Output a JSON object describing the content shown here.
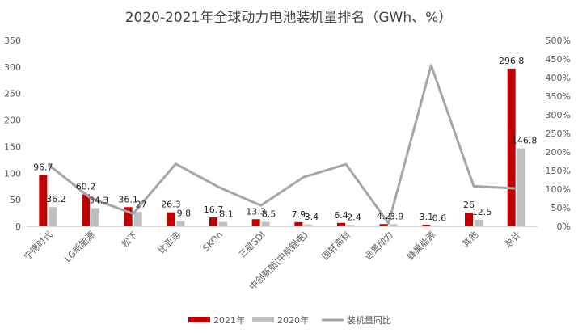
{
  "chart_data": {
    "type": "bar",
    "title": "2020-2021年全球动力电池装机量排名（GWh、%）",
    "categories": [
      "宁德时代",
      "LG新能源",
      "松下",
      "比亚迪",
      "SKOn",
      "三星SDI",
      "中创新航(中航锂电)",
      "国轩高科",
      "远景动力",
      "蜂巢能源",
      "其他",
      "总计"
    ],
    "series": [
      {
        "name": "2021年",
        "type": "bar",
        "axis": "left",
        "color": "#C00000",
        "values": [
          96.7,
          60.2,
          36.1,
          26.3,
          16.7,
          13.3,
          7.9,
          6.4,
          4.2,
          3.1,
          26,
          296.8
        ],
        "labels": [
          "96.7",
          "60.2",
          "36.1",
          "26.3",
          "16.7",
          "13.3",
          "7.9",
          "6.4",
          "4.2",
          "3.1",
          "26",
          "296.8"
        ]
      },
      {
        "name": "2020年",
        "type": "bar",
        "axis": "left",
        "color": "#BFBFBF",
        "values": [
          36.2,
          34.3,
          27,
          9.8,
          8.1,
          8.5,
          3.4,
          2.4,
          3.9,
          0.6,
          12.5,
          146.8
        ],
        "labels": [
          "36.2",
          "34.3",
          "27",
          "9.8",
          "8.1",
          "8.5",
          "3.4",
          "2.4",
          "3.9",
          "0.6",
          "12.5",
          "146.8"
        ]
      },
      {
        "name": "装机量同比",
        "type": "line",
        "axis": "right",
        "color": "#A6A6A6",
        "values": [
          167,
          76,
          34,
          168,
          106,
          56,
          132,
          167,
          8,
          433,
          108,
          102
        ]
      }
    ],
    "y_left": {
      "min": 0,
      "max": 350,
      "step": 50,
      "ticks": [
        "0",
        "50",
        "100",
        "150",
        "200",
        "250",
        "300",
        "350"
      ]
    },
    "y_right": {
      "min": 0,
      "max": 500,
      "step": 50,
      "ticks": [
        "0%",
        "50%",
        "100%",
        "150%",
        "200%",
        "250%",
        "300%",
        "350%",
        "400%",
        "450%",
        "500%"
      ]
    },
    "legend": {
      "position": "bottom",
      "items": [
        "2021年",
        "2020年",
        "装机量同比"
      ]
    },
    "grid": false
  }
}
